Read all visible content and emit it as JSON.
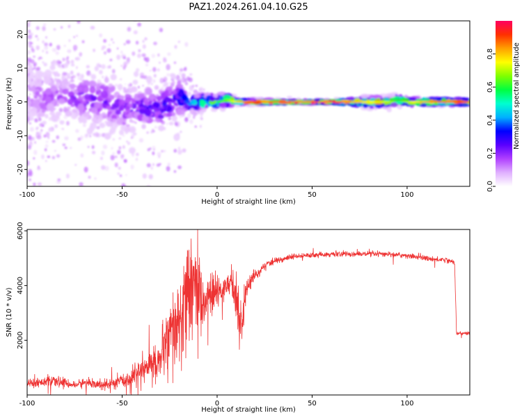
{
  "figure": {
    "title": "PAZ1.2024.261.04.10.G25"
  },
  "chart_data": [
    {
      "type": "heatmap",
      "xlabel": "Height of straight line (km)",
      "ylabel": "Frequency (Hz)",
      "xlim": [
        -100,
        133
      ],
      "ylim": [
        -25,
        24
      ],
      "x_ticks": [
        -100,
        -50,
        0,
        50,
        100
      ],
      "y_ticks": [
        -20,
        -10,
        0,
        10,
        20
      ],
      "grid": false,
      "colorbar": {
        "label": "Normalized spectral amplitude",
        "range": [
          0,
          1
        ],
        "ticks": [
          0.0,
          0.2,
          0.4,
          0.6,
          0.8
        ],
        "colors": [
          "#ffffff",
          "#e0b0ff",
          "#b040ff",
          "#5a00ff",
          "#0000ff",
          "#00b0ff",
          "#00ffd0",
          "#00ff40",
          "#80ff00",
          "#ffff00",
          "#ffa000",
          "#ff3000",
          "#ff0060"
        ]
      },
      "ridge": {
        "x": [
          -100,
          -90,
          -80,
          -70,
          -60,
          -50,
          -40,
          -30,
          -20,
          -15,
          -10,
          -5,
          0,
          5,
          10,
          20,
          40,
          60,
          70,
          80,
          90,
          95,
          100,
          110,
          120,
          133
        ],
        "frequency": [
          1.5,
          1.0,
          1.5,
          1.0,
          0.5,
          -2.0,
          -1.5,
          -2.0,
          1.5,
          -0.5,
          0.0,
          0.0,
          0.0,
          0.5,
          0.0,
          0.0,
          0.0,
          0.0,
          0.0,
          0.0,
          0.0,
          0.5,
          0.0,
          0.0,
          0.0,
          0.0
        ],
        "spread_hz": [
          4.0,
          4.0,
          4.0,
          4.0,
          4.0,
          4.0,
          3.5,
          3.5,
          3.0,
          1.5,
          1.0,
          1.0,
          1.0,
          1.0,
          0.5,
          0.5,
          0.4,
          0.4,
          0.6,
          0.8,
          0.8,
          0.8,
          0.7,
          0.6,
          0.6,
          0.6
        ],
        "peak_amplitude": [
          0.12,
          0.15,
          0.15,
          0.2,
          0.2,
          0.2,
          0.22,
          0.25,
          0.3,
          0.4,
          0.5,
          0.55,
          0.6,
          0.65,
          0.8,
          0.9,
          1.0,
          1.0,
          0.85,
          0.75,
          0.7,
          0.6,
          0.7,
          0.85,
          0.9,
          0.9
        ]
      }
    },
    {
      "type": "line",
      "xlabel": "Height of straight line (km)",
      "ylabel": "SNR (10 * v/v)",
      "xlim": [
        -100,
        133
      ],
      "ylim": [
        0,
        6050
      ],
      "x_ticks": [
        -100,
        -50,
        0,
        50,
        100
      ],
      "y_ticks": [
        2000,
        4000,
        6000
      ],
      "grid": false,
      "series": [
        {
          "color": "#ee3333",
          "x": [
            -100,
            -90,
            -80,
            -75,
            -70,
            -60,
            -50,
            -45,
            -40,
            -35,
            -30,
            -27,
            -25,
            -22,
            -20,
            -18,
            -15,
            -12,
            -10,
            -7,
            -5,
            -2,
            0,
            3,
            5,
            7,
            9,
            10,
            12,
            13,
            15,
            17,
            20,
            22,
            25,
            30,
            40,
            50,
            60,
            70,
            80,
            90,
            100,
            110,
            115,
            120,
            125,
            126,
            127,
            130,
            133
          ],
          "y": [
            400,
            500,
            450,
            350,
            450,
            350,
            500,
            650,
            900,
            1100,
            1300,
            1800,
            2100,
            2300,
            2600,
            3000,
            3600,
            4200,
            3600,
            3400,
            3600,
            3700,
            3700,
            3900,
            4000,
            4100,
            3900,
            3600,
            2700,
            2500,
            3800,
            4100,
            4400,
            4500,
            4700,
            4900,
            5050,
            5100,
            5150,
            5150,
            5150,
            5150,
            5100,
            5000,
            4950,
            4950,
            4850,
            2250,
            2250,
            2250,
            2250
          ],
          "noise": [
            150,
            150,
            150,
            120,
            150,
            150,
            200,
            300,
            400,
            500,
            600,
            900,
            1200,
            1400,
            1500,
            1600,
            1600,
            1500,
            1200,
            800,
            700,
            600,
            550,
            400,
            400,
            500,
            700,
            900,
            800,
            700,
            400,
            250,
            200,
            150,
            120,
            100,
            90,
            80,
            80,
            80,
            80,
            80,
            80,
            80,
            80,
            80,
            80,
            60,
            60,
            60,
            60
          ]
        }
      ]
    }
  ]
}
